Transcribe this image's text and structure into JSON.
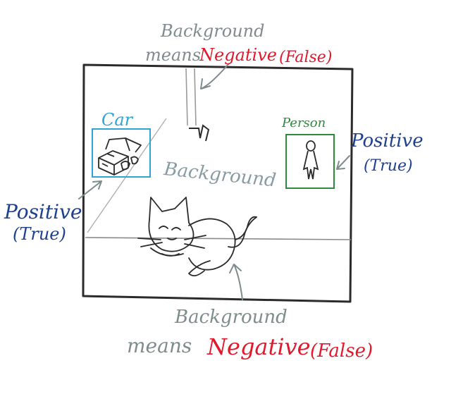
{
  "colors": {
    "ink": "#2b2b2b",
    "background_note": "#7f8c8d",
    "negative": "#e0192c",
    "positive": "#1f3f8f",
    "car_box": "#2fa4d6",
    "person_box": "#2e8b3a"
  },
  "labels": {
    "top_note": {
      "line1": "Background",
      "means": "means",
      "negative": "Negative",
      "false": "(False)"
    },
    "center_background": "Background",
    "bottom_note": {
      "line1": "Background",
      "means": "means",
      "negative": "Negative",
      "false": "(False)"
    },
    "car": "Car",
    "person": "Person",
    "left_positive": {
      "line1": "Positive",
      "line2": "(True)"
    },
    "right_positive": {
      "line1": "Positive",
      "line2": "(True)"
    }
  }
}
